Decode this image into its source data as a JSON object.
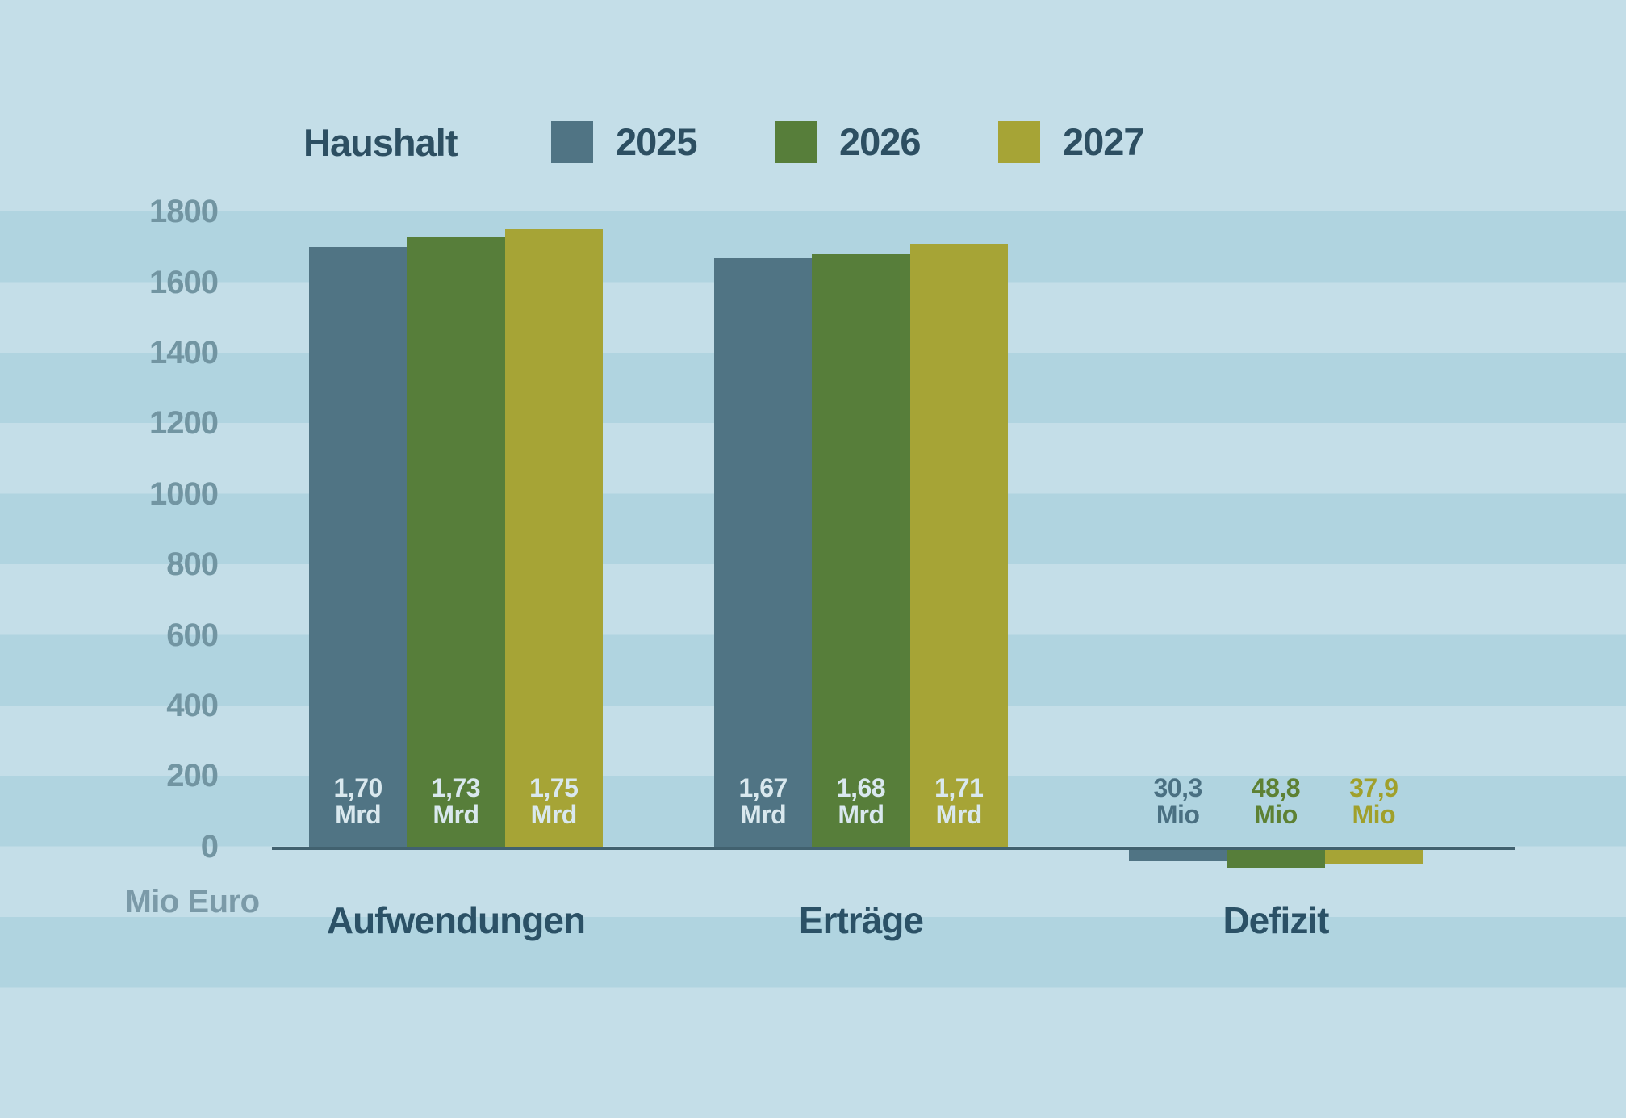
{
  "chart_data": {
    "type": "bar",
    "title": "Haushalt",
    "unit_label": "Mio Euro",
    "categories": [
      "Aufwendungen",
      "Erträge",
      "Defizit"
    ],
    "series": [
      {
        "name": "2025",
        "color": "#507484",
        "deficit_label_color": "#4a7082",
        "values": [
          1700,
          1670,
          -30.3
        ],
        "value_labels": [
          [
            "1,70",
            "Mrd"
          ],
          [
            "1,67",
            "Mrd"
          ],
          [
            "30,3",
            "Mio"
          ]
        ]
      },
      {
        "name": "2026",
        "color": "#577e3a",
        "deficit_label_color": "#5d8133",
        "values": [
          1730,
          1680,
          -48.8
        ],
        "value_labels": [
          [
            "1,73",
            "Mrd"
          ],
          [
            "1,68",
            "Mrd"
          ],
          [
            "48,8",
            "Mio"
          ]
        ]
      },
      {
        "name": "2027",
        "color": "#a6a436",
        "deficit_label_color": "#a0a02b",
        "values": [
          1750,
          1710,
          -37.9
        ],
        "value_labels": [
          [
            "1,75",
            "Mrd"
          ],
          [
            "1,71",
            "Mrd"
          ],
          [
            "37,9",
            "Mio"
          ]
        ]
      }
    ],
    "y_axis": {
      "ticks": [
        1800,
        1600,
        1400,
        1200,
        1000,
        800,
        600,
        400,
        200,
        0
      ],
      "min": 0,
      "max": 1800,
      "step": 200,
      "grid": "striped-bands"
    },
    "legend": {
      "title": "Haushalt",
      "position": "top",
      "items": [
        "2025",
        "2026",
        "2027"
      ]
    }
  },
  "colors": {
    "bg_light": "#c4dee8",
    "bg_dark": "#b0d4e0",
    "axis_line": "#41616f",
    "tick_label": "#7295a2",
    "unit_label": "#7b9aa8",
    "category_label": "#2b5166",
    "legend_text": "#2d4f62",
    "bar_value_label": "#d9e8ee"
  }
}
